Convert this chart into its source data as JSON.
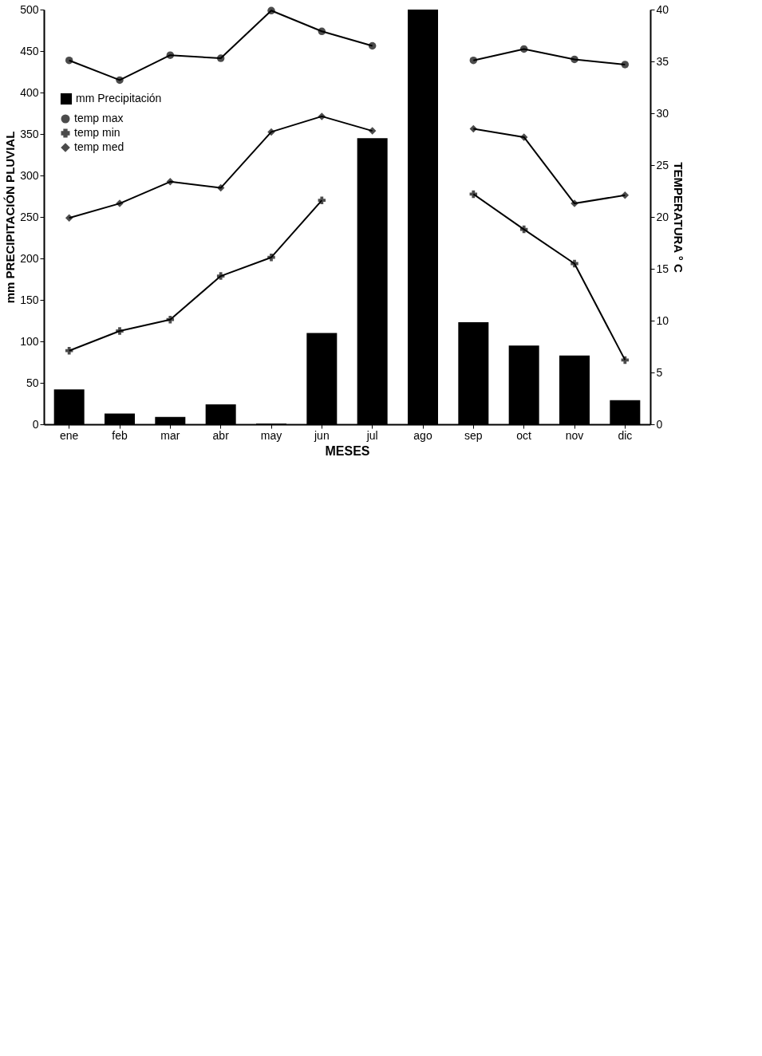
{
  "chart_data": {
    "type": "bar",
    "xlabel": "MESES",
    "ylabel": "mm PRECIPITACIÓN PLUVIAL",
    "y2label": "TEMPERATURA ° C",
    "categories": [
      "ene",
      "feb",
      "mar",
      "abr",
      "may",
      "jun",
      "jul",
      "ago",
      "sep",
      "oct",
      "nov",
      "dic"
    ],
    "ylim": [
      0,
      500
    ],
    "yticks": [
      0,
      50,
      100,
      150,
      200,
      250,
      300,
      350,
      400,
      450,
      500
    ],
    "y2lim": [
      0,
      40
    ],
    "y2ticks": [
      0,
      5,
      10,
      15,
      20,
      25,
      30,
      35,
      40
    ],
    "legend": "left",
    "grid": false,
    "series": [
      {
        "name": "mm Precipitación",
        "color": "#000000",
        "values": [
          42,
          13,
          9,
          24,
          1,
          110,
          345,
          500,
          123,
          95,
          83,
          29
        ]
      },
      {
        "name": "temp max",
        "type": "line",
        "axis": "y2",
        "marker": "circle",
        "line_style": "solid",
        "color": "#000000",
        "values": [
          35.1,
          33.2,
          35.6,
          35.3,
          39.9,
          37.9,
          36.5,
          null,
          35.1,
          36.2,
          35.2,
          34.7
        ]
      },
      {
        "name": "temp min",
        "type": "line",
        "axis": "y2",
        "marker": "cross",
        "line_style": "solid",
        "color": "#000000",
        "values": [
          7.1,
          9.0,
          10.1,
          14.3,
          16.1,
          21.6,
          null,
          null,
          22.2,
          18.8,
          15.5,
          6.2
        ]
      },
      {
        "name": "temp med",
        "type": "line",
        "axis": "y2",
        "marker": "diamond",
        "line_style": "solid",
        "color": "#000000",
        "values": [
          19.9,
          21.3,
          23.4,
          22.8,
          28.2,
          29.7,
          28.3,
          null,
          28.5,
          27.7,
          21.3,
          22.1
        ]
      }
    ]
  }
}
